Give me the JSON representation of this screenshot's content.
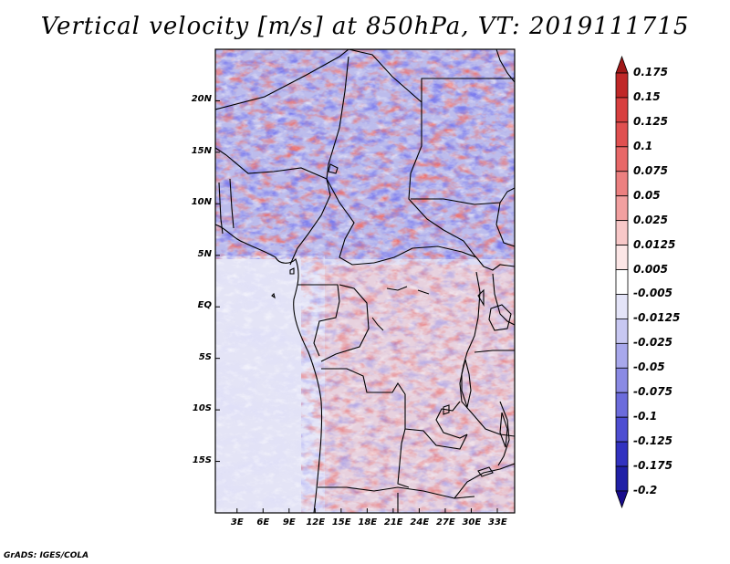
{
  "title": "Vertical velocity [m/s] at 850hPa, VT: 2019111715",
  "credit": "GrADS: IGES/COLA",
  "lat_ticks": [
    {
      "label": "20N",
      "lat": 20
    },
    {
      "label": "15N",
      "lat": 15
    },
    {
      "label": "10N",
      "lat": 10
    },
    {
      "label": "5N",
      "lat": 5
    },
    {
      "label": "EQ",
      "lat": 0
    },
    {
      "label": "5S",
      "lat": -5
    },
    {
      "label": "10S",
      "lat": -10
    },
    {
      "label": "15S",
      "lat": -15
    }
  ],
  "lon_ticks": [
    {
      "label": "3E",
      "lon": 3
    },
    {
      "label": "6E",
      "lon": 6
    },
    {
      "label": "9E",
      "lon": 9
    },
    {
      "label": "12E",
      "lon": 12
    },
    {
      "label": "15E",
      "lon": 15
    },
    {
      "label": "18E",
      "lon": 18
    },
    {
      "label": "21E",
      "lon": 21
    },
    {
      "label": "24E",
      "lon": 24
    },
    {
      "label": "27E",
      "lon": 27
    },
    {
      "label": "30E",
      "lon": 30
    },
    {
      "label": "33E",
      "lon": 33
    }
  ],
  "extent": {
    "lon_min": 0.5,
    "lon_max": 35,
    "lat_min": -20,
    "lat_max": 25
  },
  "colorbar": {
    "labels": [
      "0.175",
      "0.15",
      "0.125",
      "0.1",
      "0.075",
      "0.05",
      "0.025",
      "0.0125",
      "0.005",
      "-0.005",
      "-0.0125",
      "-0.025",
      "-0.05",
      "-0.075",
      "-0.1",
      "-0.125",
      "-0.175",
      "-0.2"
    ],
    "colors": [
      "#a01818",
      "#c02828",
      "#d84040",
      "#e05050",
      "#e86868",
      "#ec8080",
      "#f2a0a0",
      "#f8c8c8",
      "#fce6e6",
      "#ffffff",
      "#e4e4f8",
      "#c8c8f2",
      "#a8a8ec",
      "#8a8ae4",
      "#6c6cdc",
      "#4e4ed2",
      "#3232c0",
      "#2020a6",
      "#180c8c"
    ]
  },
  "colors": {
    "frame": "#000000",
    "background": "#ffffff"
  }
}
